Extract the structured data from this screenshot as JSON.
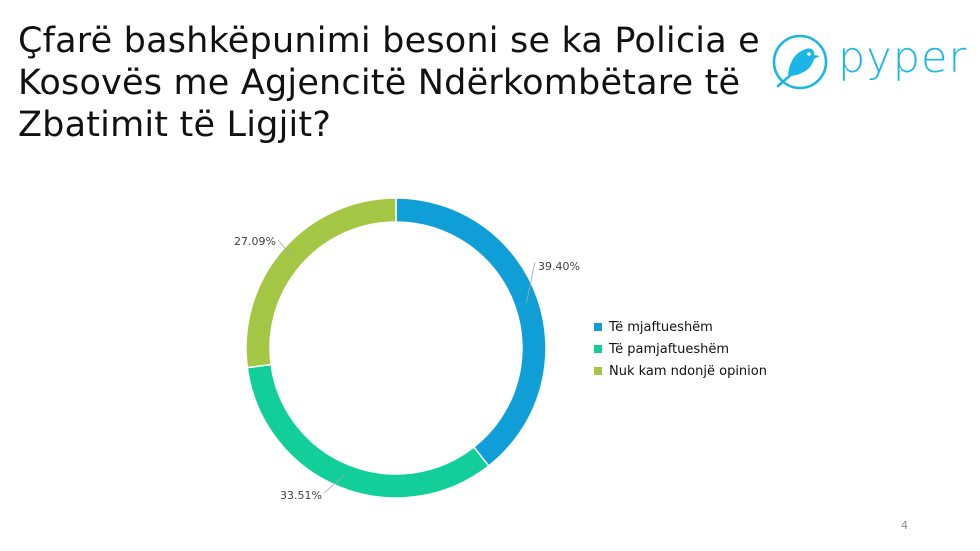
{
  "slide": {
    "title_lines": [
      "Çfarë bashkëpunimi besoni se ka Policia e",
      "Kosovës me Agjencitë Ndërkombëtare të",
      "Zbatimit të Ligjit?"
    ],
    "logo_text": "pyper",
    "page_number": "4"
  },
  "chart_data": {
    "type": "pie",
    "variant": "donut",
    "title": "",
    "categories": [
      "Të mjaftueshëm",
      "Të pamjaftueshëm",
      "Nuk kam ndonjë opinion"
    ],
    "values": [
      39.4,
      33.51,
      27.09
    ],
    "data_labels": [
      "39.40%",
      "33.51%",
      "27.09%"
    ],
    "colors": [
      "#0f9ed5",
      "#12cf9a",
      "#a3c644"
    ],
    "legend_position": "right"
  }
}
